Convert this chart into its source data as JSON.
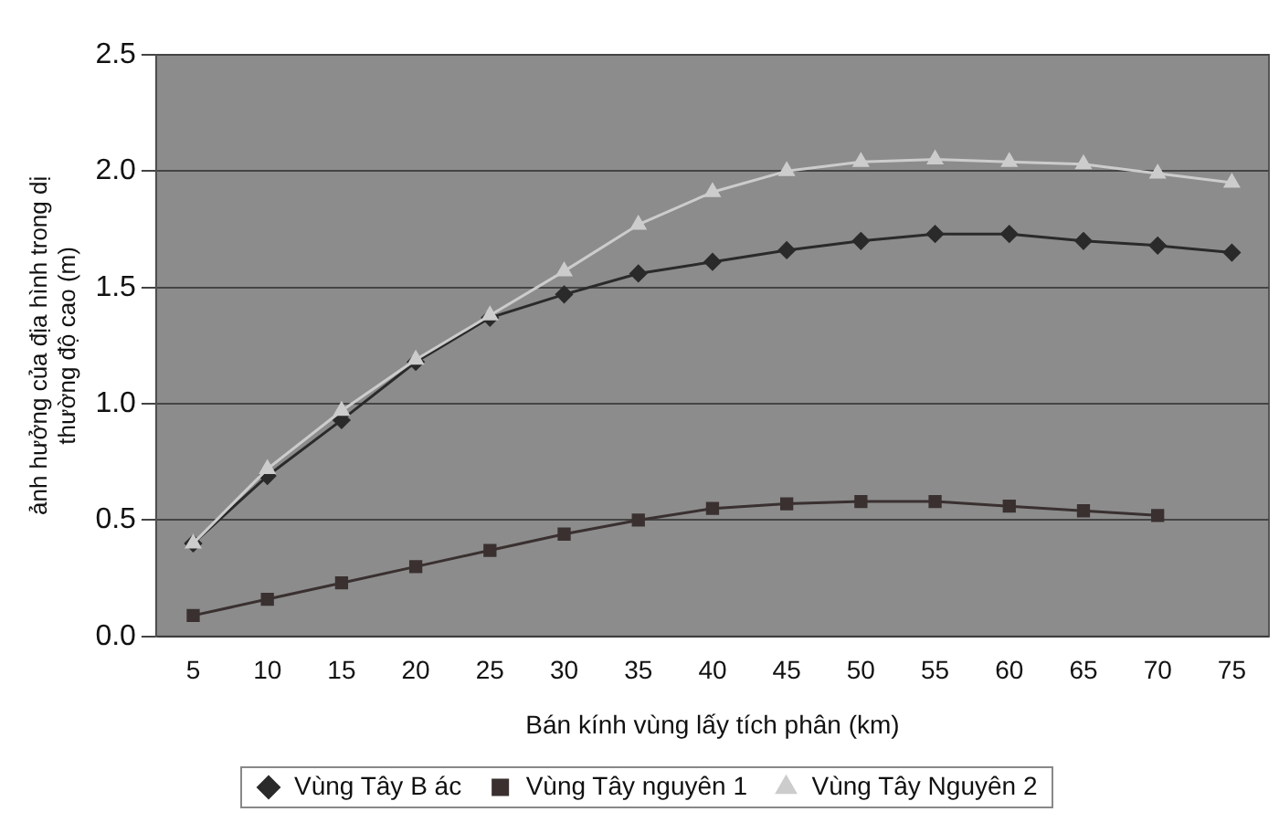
{
  "chart_data": {
    "type": "line",
    "xlabel": "Bán kính vùng lấy tích phân (km)",
    "ylabel": "ảnh hưởng của địa hình trong dị thường độ cao (m)",
    "categories": [
      "5",
      "10",
      "15",
      "20",
      "25",
      "30",
      "35",
      "40",
      "45",
      "50",
      "55",
      "60",
      "65",
      "70",
      "75"
    ],
    "series": [
      {
        "name": "Vùng Tây B ác",
        "color": "#2a2a2a",
        "marker": "diamond",
        "values": [
          0.4,
          0.69,
          0.93,
          1.18,
          1.37,
          1.47,
          1.56,
          1.61,
          1.66,
          1.7,
          1.73,
          1.73,
          1.7,
          1.68,
          1.65
        ]
      },
      {
        "name": "Vùng Tây nguyên 1",
        "color": "#3a3030",
        "marker": "square",
        "values": [
          0.09,
          0.16,
          0.23,
          0.3,
          0.37,
          0.44,
          0.5,
          0.55,
          0.57,
          0.58,
          0.58,
          0.56,
          0.54,
          0.52,
          null
        ]
      },
      {
        "name": "Vùng Tây Nguyên 2",
        "color": "#cccccc",
        "marker": "triangle",
        "values": [
          0.4,
          0.72,
          0.97,
          1.19,
          1.38,
          1.57,
          1.77,
          1.91,
          2.0,
          2.04,
          2.05,
          2.04,
          2.03,
          1.99,
          1.95
        ]
      }
    ],
    "ylim": [
      0,
      2.5
    ],
    "yticks": [
      {
        "value": 0,
        "label": "0.0"
      },
      0.5,
      {
        "value": 1,
        "label": "1.0"
      },
      1.5,
      {
        "value": 2,
        "label": "2.0"
      },
      2.5
    ],
    "grid": "y",
    "legend": "bottom"
  }
}
